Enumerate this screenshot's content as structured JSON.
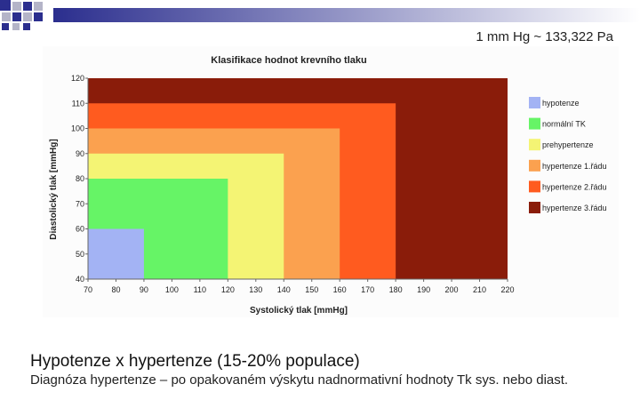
{
  "slide": {
    "unit_note": "1 mm Hg ~ 133,322 Pa",
    "heading": "Hypotenze x hypertenze (15-20% populace)",
    "subtext": "Diagnóza hypertenze – po opakovaném  výskytu nadnormativní hodnoty Tk sys. nebo diast."
  },
  "colors": {
    "deco_blue": "#2b2e8e",
    "deco_gray": "#b4b4c8"
  },
  "chart_data": {
    "type": "area",
    "title": "Klasifikace hodnot krevního tlaku",
    "xlabel": "Systolický tlak [mmHg]",
    "ylabel": "Diastolický tlak [mmHg]",
    "xlim": [
      70,
      220
    ],
    "ylim": [
      40,
      120
    ],
    "xticks": [
      70,
      80,
      90,
      100,
      110,
      120,
      130,
      140,
      150,
      160,
      170,
      180,
      190,
      200,
      210,
      220
    ],
    "yticks": [
      40,
      50,
      60,
      70,
      80,
      90,
      100,
      110,
      120
    ],
    "legend_position": "right",
    "grid": false,
    "series": [
      {
        "name": "hypotenze",
        "color": "#a3b3f4",
        "x_max": 90,
        "y_max": 60
      },
      {
        "name": "normální TK",
        "color": "#66f466",
        "x_max": 120,
        "y_max": 80
      },
      {
        "name": "prehypertenze",
        "color": "#f4f474",
        "x_max": 140,
        "y_max": 90
      },
      {
        "name": "hypertenze 1.řádu",
        "color": "#fba14f",
        "x_max": 160,
        "y_max": 100
      },
      {
        "name": "hypertenze 2.řádu",
        "color": "#ff5b1f",
        "x_max": 180,
        "y_max": 110
      },
      {
        "name": "hypertenze 3.řádu",
        "color": "#8a1c0a",
        "x_max": 220,
        "y_max": 120
      }
    ]
  }
}
